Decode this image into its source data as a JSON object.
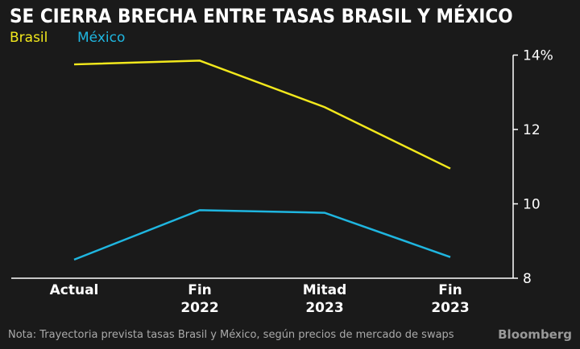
{
  "chart_data": {
    "type": "line",
    "title": "SE CIERRA BRECHA ENTRE TASAS BRASIL Y MÉXICO",
    "categories": [
      [
        "Actual"
      ],
      [
        "Fin",
        "2022"
      ],
      [
        "Mitad",
        "2023"
      ],
      [
        "Fin",
        "2023"
      ]
    ],
    "series": [
      {
        "name": "Brasil",
        "color": "#f2e81c",
        "values": [
          13.75,
          13.85,
          12.6,
          10.95
        ]
      },
      {
        "name": "México",
        "color": "#1fb6e0",
        "values": [
          8.5,
          9.83,
          9.76,
          8.57
        ]
      }
    ],
    "yticks": [
      "14%",
      "12",
      "10",
      "8"
    ],
    "ytick_values": [
      14,
      12,
      10,
      8
    ],
    "ylim": [
      8,
      14
    ],
    "y_axis_side": "right",
    "legend_position": "top-left",
    "note": "Nota: Trayectoria prevista tasas Brasil y México, según precios de mercado de swaps",
    "source_logo": "Bloomberg"
  }
}
